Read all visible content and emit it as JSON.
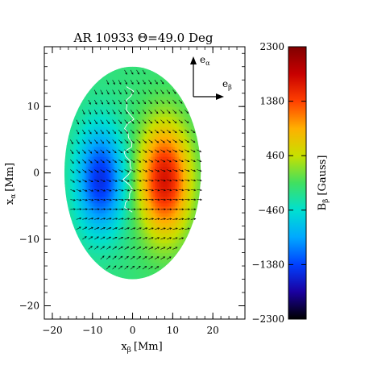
{
  "chart_data": {
    "type": "heatmap",
    "title": "AR 10933 Θ=49.0 Deg",
    "xlabel": "x",
    "xlabel_sub": "β",
    "xlabel_unit": "[Mm]",
    "ylabel": "x",
    "ylabel_sub": "α",
    "ylabel_unit": "[Mm]",
    "xlim": [
      -22,
      28
    ],
    "ylim": [
      -22,
      19
    ],
    "x_ticks": [
      -20,
      -10,
      0,
      10,
      20
    ],
    "y_ticks": [
      -20,
      -10,
      0,
      10
    ],
    "x_tick_labels": [
      "−20",
      "−10",
      "0",
      "10",
      "20"
    ],
    "y_tick_labels": [
      "−20",
      "−10",
      "0",
      "10"
    ],
    "disk": {
      "center": [
        0,
        0
      ],
      "semi_axis_x": 17,
      "semi_axis_y": 16
    },
    "field_model": {
      "positive_lobe": {
        "x": 8,
        "y": -1,
        "peak": 1800
      },
      "negative_lobe": {
        "x": -8,
        "y": -1,
        "peak": -1400
      },
      "background": -100
    },
    "arrow_grid_spacing": 1.5,
    "basis_vectors": {
      "vertical": {
        "label": "e",
        "sub": "α"
      },
      "horizontal": {
        "label": "e",
        "sub": "β"
      }
    },
    "colorbar": {
      "label": "B",
      "label_sub": "β",
      "label_unit": "[Gauss]",
      "range": [
        -2300,
        2300
      ],
      "ticks": [
        2300,
        1380,
        460,
        -460,
        -1380,
        -2300
      ],
      "tick_labels": [
        "2300",
        "1380",
        "460",
        "−460",
        "−1380",
        "−2300"
      ],
      "colormap": [
        "#000000",
        "#1a00a0",
        "#0040ff",
        "#00a8ff",
        "#00e0d0",
        "#40e060",
        "#c8e000",
        "#ffb000",
        "#ff4000",
        "#c80000",
        "#800000"
      ]
    }
  }
}
